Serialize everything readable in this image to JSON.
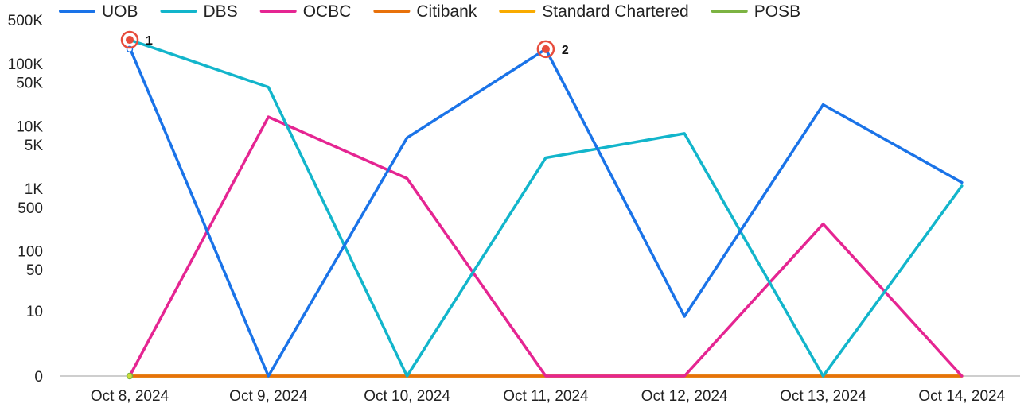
{
  "chart_data": {
    "type": "line",
    "title": "",
    "xlabel": "",
    "ylabel": "",
    "yscale": "symlog",
    "legend_position": "top-left",
    "grid": false,
    "categories": [
      "Oct 8, 2024",
      "Oct 9, 2024",
      "Oct 10, 2024",
      "Oct 11, 2024",
      "Oct 12, 2024",
      "Oct 13, 2024",
      "Oct 14, 2024"
    ],
    "y_ticks": [
      0,
      10,
      50,
      100,
      500,
      1000,
      5000,
      10000,
      50000,
      100000,
      500000
    ],
    "y_tick_labels": [
      "0",
      "10",
      "50",
      "100",
      "500",
      "1K",
      "5K",
      "10K",
      "50K",
      "100K",
      "500K"
    ],
    "ylim": [
      0,
      500000
    ],
    "series": [
      {
        "name": "UOB",
        "color": "#1a73e8",
        "values": [
          180000,
          0,
          6500,
          170000,
          8,
          22000,
          1250
        ]
      },
      {
        "name": "DBS",
        "color": "#12b5cb",
        "values": [
          240000,
          42000,
          0,
          3100,
          7600,
          0,
          1100
        ]
      },
      {
        "name": "OCBC",
        "color": "#e52592",
        "values": [
          0,
          14000,
          1450,
          0,
          0,
          270,
          0
        ]
      },
      {
        "name": "Citibank",
        "color": "#e8710a",
        "values": [
          0,
          0,
          0,
          0,
          0,
          0,
          0
        ]
      },
      {
        "name": "Standard Chartered",
        "color": "#f9ab00",
        "values": [
          0,
          0,
          0,
          0,
          0,
          0,
          0
        ]
      },
      {
        "name": "POSB",
        "color": "#7cb342",
        "values": [
          0,
          0,
          0,
          0,
          0,
          0,
          0
        ]
      }
    ],
    "annotations": [
      {
        "label": "1",
        "x": "Oct 8, 2024",
        "y": 240000,
        "marker_color": "#e74c3c"
      },
      {
        "label": "2",
        "x": "Oct 11, 2024",
        "y": 170000,
        "marker_color": "#e74c3c"
      }
    ]
  }
}
